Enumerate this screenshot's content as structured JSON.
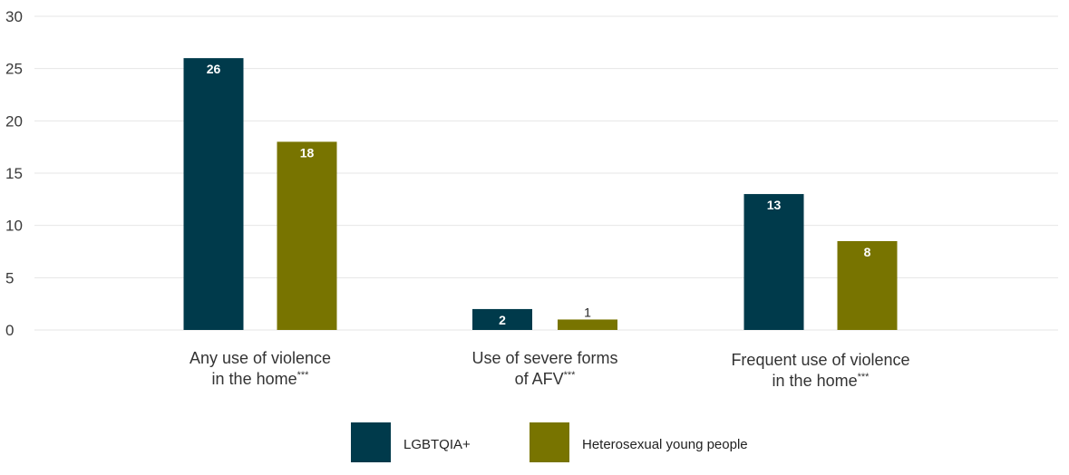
{
  "chart_data": {
    "type": "bar",
    "categories": [
      {
        "main": "Any use of violence",
        "line2": "in the home",
        "mark": "***"
      },
      {
        "main": "Use of severe forms",
        "line2": "of AFV",
        "mark": "***"
      },
      {
        "main": "Frequent use of violence",
        "line2": "in the home",
        "mark": "***"
      }
    ],
    "series": [
      {
        "name": "LGBTQIA+",
        "color": "#003a4b",
        "values": [
          26,
          2,
          13
        ],
        "labels": [
          "26",
          "2",
          "13"
        ]
      },
      {
        "name": "Heterosexual young people",
        "color": "#787400",
        "values": [
          18,
          1,
          8.5
        ],
        "labels": [
          "18",
          "1",
          "8"
        ]
      }
    ],
    "yticks": [
      "0",
      "5",
      "10",
      "15",
      "20",
      "25",
      "30"
    ],
    "ylim": [
      0,
      30
    ],
    "grid": true,
    "legend_position": "bottom-center"
  }
}
